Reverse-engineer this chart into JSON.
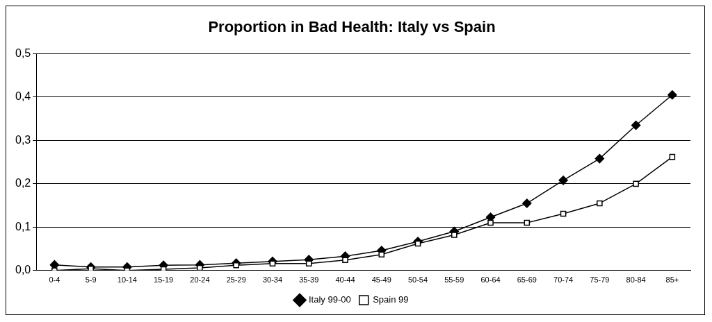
{
  "chart_data": {
    "type": "line",
    "title": "Proportion in Bad Health: Italy vs Spain",
    "categories": [
      "0-4",
      "5-9",
      "10-14",
      "15-19",
      "20-24",
      "25-29",
      "30-34",
      "35-39",
      "40-44",
      "45-49",
      "50-54",
      "55-59",
      "60-64",
      "65-69",
      "70-74",
      "75-79",
      "80-84",
      "85+"
    ],
    "series": [
      {
        "name": "Italy 99-00",
        "color": "#000000",
        "marker": "diamond",
        "values": [
          0.013,
          0.008,
          0.008,
          0.012,
          0.013,
          0.017,
          0.021,
          0.025,
          0.033,
          0.046,
          0.067,
          0.09,
          0.123,
          0.155,
          0.208,
          0.258,
          0.335,
          0.405
        ]
      },
      {
        "name": "Spain 99",
        "color": "#000000",
        "marker": "square",
        "values": [
          0.0,
          0.004,
          0.0,
          0.003,
          0.006,
          0.012,
          0.016,
          0.016,
          0.024,
          0.037,
          0.062,
          0.082,
          0.11,
          0.11,
          0.131,
          0.155,
          0.2,
          0.262
        ]
      }
    ],
    "ylim": [
      0,
      0.5
    ],
    "yticks": [
      {
        "value": 0,
        "label": "0,0"
      },
      {
        "value": 0.1,
        "label": "0,1"
      },
      {
        "value": 0.2,
        "label": "0,2"
      },
      {
        "value": 0.3,
        "label": "0,3"
      },
      {
        "value": 0.4,
        "label": "0,4"
      },
      {
        "value": 0.5,
        "label": "0,5"
      }
    ],
    "grid": "y",
    "legend": "bottom",
    "line_style": "solid"
  }
}
